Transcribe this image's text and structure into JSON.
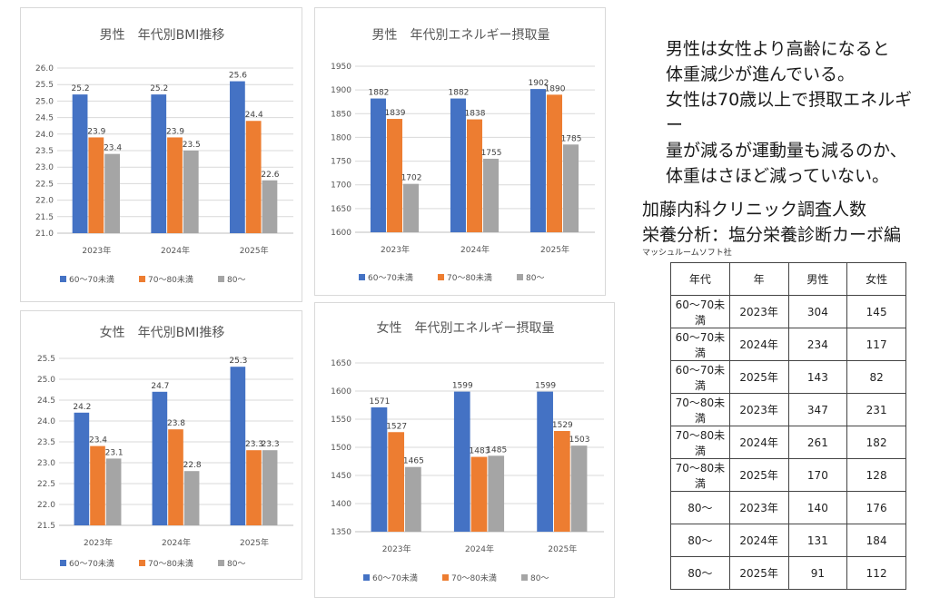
{
  "colors": {
    "s1": "#4472C4",
    "s2": "#ED7D31",
    "s3": "#A5A5A5",
    "grid": "#D9D9D9",
    "axis": "#BFBFBF"
  },
  "chart_data": [
    {
      "type": "bar",
      "title": "男性　年代別BMI推移",
      "categories": [
        "2023年",
        "2024年",
        "2025年"
      ],
      "series": [
        {
          "name": "60～70未満",
          "values": [
            25.2,
            25.2,
            25.6
          ]
        },
        {
          "name": "70～80未満",
          "values": [
            23.9,
            23.9,
            24.4
          ]
        },
        {
          "name": "80～",
          "values": [
            23.4,
            23.5,
            22.6
          ]
        }
      ],
      "ylim": [
        21.0,
        26.0
      ],
      "yticks": [
        "21.0",
        "21.5",
        "22.0",
        "22.5",
        "23.0",
        "23.5",
        "24.0",
        "24.5",
        "25.0",
        "25.5",
        "26.0"
      ],
      "grid": true,
      "legend": "bottom"
    },
    {
      "type": "bar",
      "title": "男性　年代別エネルギー摂取量",
      "categories": [
        "2023年",
        "2024年",
        "2025年"
      ],
      "series": [
        {
          "name": "60～70未満",
          "values": [
            1882,
            1882,
            1902
          ]
        },
        {
          "name": "70～80未満",
          "values": [
            1839,
            1838,
            1890
          ]
        },
        {
          "name": "80～",
          "values": [
            1702,
            1755,
            1785
          ]
        }
      ],
      "ylim": [
        1600,
        1950
      ],
      "yticks": [
        "1600",
        "1650",
        "1700",
        "1750",
        "1800",
        "1850",
        "1900",
        "1950"
      ],
      "grid": true,
      "legend": "bottom"
    },
    {
      "type": "bar",
      "title": "女性　年代別BMI推移",
      "categories": [
        "2023年",
        "2024年",
        "2025年"
      ],
      "series": [
        {
          "name": "60～70未満",
          "values": [
            24.2,
            24.7,
            25.3
          ]
        },
        {
          "name": "70～80未満",
          "values": [
            23.4,
            23.8,
            23.3
          ]
        },
        {
          "name": "80～",
          "values": [
            23.1,
            22.8,
            23.3
          ]
        }
      ],
      "ylim": [
        21.5,
        25.5
      ],
      "yticks": [
        "21.5",
        "22.0",
        "22.5",
        "23.0",
        "23.5",
        "24.0",
        "24.5",
        "25.0",
        "25.5"
      ],
      "grid": true,
      "legend": "bottom"
    },
    {
      "type": "bar",
      "title": "女性　年代別エネルギー摂取量",
      "categories": [
        "2023年",
        "2024年",
        "2025年"
      ],
      "series": [
        {
          "name": "60～70未満",
          "values": [
            1571,
            1599,
            1599
          ]
        },
        {
          "name": "70～80未満",
          "values": [
            1527,
            1483,
            1529
          ]
        },
        {
          "name": "80～",
          "values": [
            1465,
            1485,
            1503
          ]
        }
      ],
      "ylim": [
        1350,
        1650
      ],
      "yticks": [
        "1350",
        "1400",
        "1450",
        "1500",
        "1550",
        "1600",
        "1650"
      ],
      "grid": true,
      "legend": "bottom"
    }
  ],
  "note": "男性は女性より高齢になると\n体重減少が進んでいる。\n女性は70歳以上で摂取エネルギー\n量が減るが運動量も減るのか、\n体重はさほど減っていない。",
  "survey": {
    "title": "加藤内科クリニック調査人数",
    "subtitle": "栄養分析：塩分栄養診断カーボ編",
    "company": "マッシュルームソフト社",
    "headers": [
      "年代",
      "年",
      "男性",
      "女性"
    ],
    "rows": [
      [
        "60～70未満",
        "2023年",
        "304",
        "145"
      ],
      [
        "60～70未満",
        "2024年",
        "234",
        "117"
      ],
      [
        "60～70未満",
        "2025年",
        "143",
        "82"
      ],
      [
        "70～80未満",
        "2023年",
        "347",
        "231"
      ],
      [
        "70～80未満",
        "2024年",
        "261",
        "182"
      ],
      [
        "70～80未満",
        "2025年",
        "170",
        "128"
      ],
      [
        "80～",
        "2023年",
        "140",
        "176"
      ],
      [
        "80～",
        "2024年",
        "131",
        "184"
      ],
      [
        "80～",
        "2025年",
        "91",
        "112"
      ]
    ]
  }
}
